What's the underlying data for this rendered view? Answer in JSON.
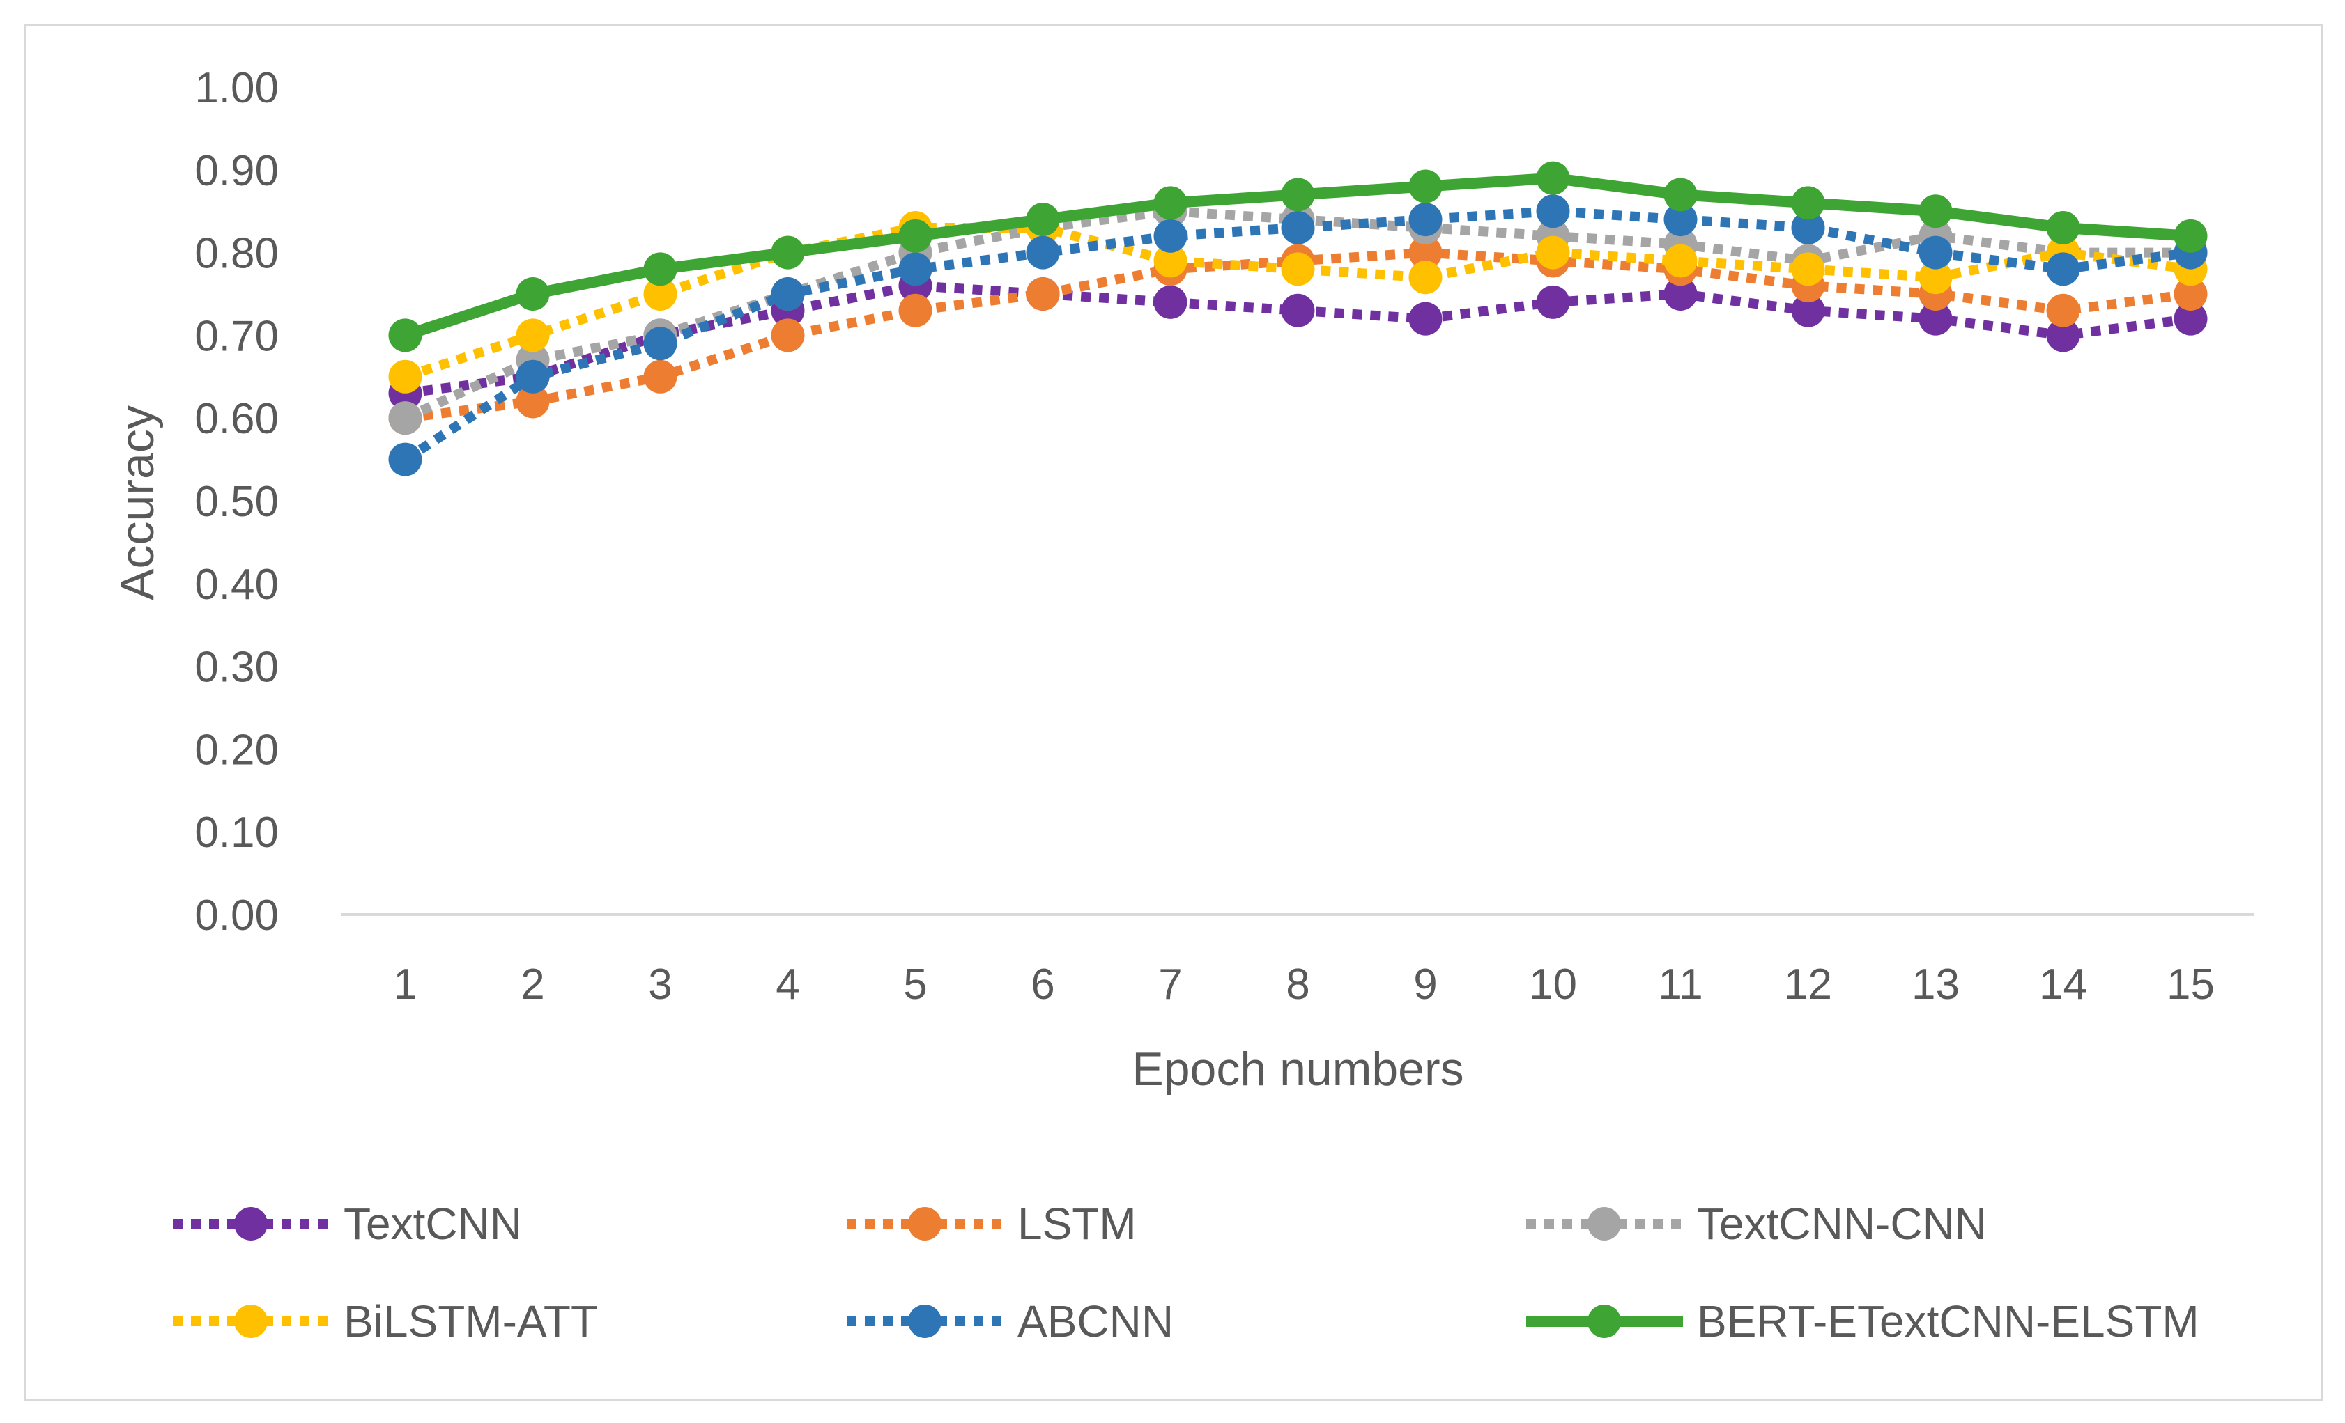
{
  "chart_data": {
    "type": "line",
    "title": "",
    "xlabel": "Epoch numbers",
    "ylabel": "Accuracy",
    "ylim": [
      0,
      1
    ],
    "y_ticks": [
      "0.00",
      "0.10",
      "0.20",
      "0.30",
      "0.40",
      "0.50",
      "0.60",
      "0.70",
      "0.80",
      "0.90",
      "1.00"
    ],
    "categories": [
      "1",
      "2",
      "3",
      "4",
      "5",
      "6",
      "7",
      "8",
      "9",
      "10",
      "11",
      "12",
      "13",
      "14",
      "15"
    ],
    "grid": false,
    "legend_position": "bottom",
    "series": [
      {
        "name": "TextCNN",
        "color": "#7030a0",
        "style": "dotted",
        "values": [
          0.63,
          0.65,
          0.7,
          0.73,
          0.76,
          0.75,
          0.74,
          0.73,
          0.72,
          0.74,
          0.75,
          0.73,
          0.72,
          0.7,
          0.72
        ]
      },
      {
        "name": "LSTM",
        "color": "#ed7d31",
        "style": "dotted",
        "values": [
          0.6,
          0.62,
          0.65,
          0.7,
          0.73,
          0.75,
          0.78,
          0.79,
          0.8,
          0.79,
          0.78,
          0.76,
          0.75,
          0.73,
          0.75
        ]
      },
      {
        "name": "TextCNN-CNN",
        "color": "#a5a5a5",
        "style": "dotted",
        "values": [
          0.6,
          0.67,
          0.7,
          0.75,
          0.8,
          0.83,
          0.85,
          0.84,
          0.83,
          0.82,
          0.81,
          0.79,
          0.82,
          0.8,
          0.8
        ]
      },
      {
        "name": "BiLSTM-ATT",
        "color": "#ffc000",
        "style": "dotted",
        "values": [
          0.65,
          0.7,
          0.75,
          0.8,
          0.83,
          0.83,
          0.79,
          0.78,
          0.77,
          0.8,
          0.79,
          0.78,
          0.77,
          0.8,
          0.78
        ]
      },
      {
        "name": "ABCNN",
        "color": "#2e75b6",
        "style": "dotted",
        "values": [
          0.55,
          0.65,
          0.69,
          0.75,
          0.78,
          0.8,
          0.82,
          0.83,
          0.84,
          0.85,
          0.84,
          0.83,
          0.8,
          0.78,
          0.8
        ]
      },
      {
        "name": "BERT-ETextCNN-ELSTM",
        "color": "#3ea535",
        "style": "solid",
        "values": [
          0.7,
          0.75,
          0.78,
          0.8,
          0.82,
          0.84,
          0.86,
          0.87,
          0.88,
          0.89,
          0.87,
          0.86,
          0.85,
          0.83,
          0.82
        ]
      }
    ]
  }
}
